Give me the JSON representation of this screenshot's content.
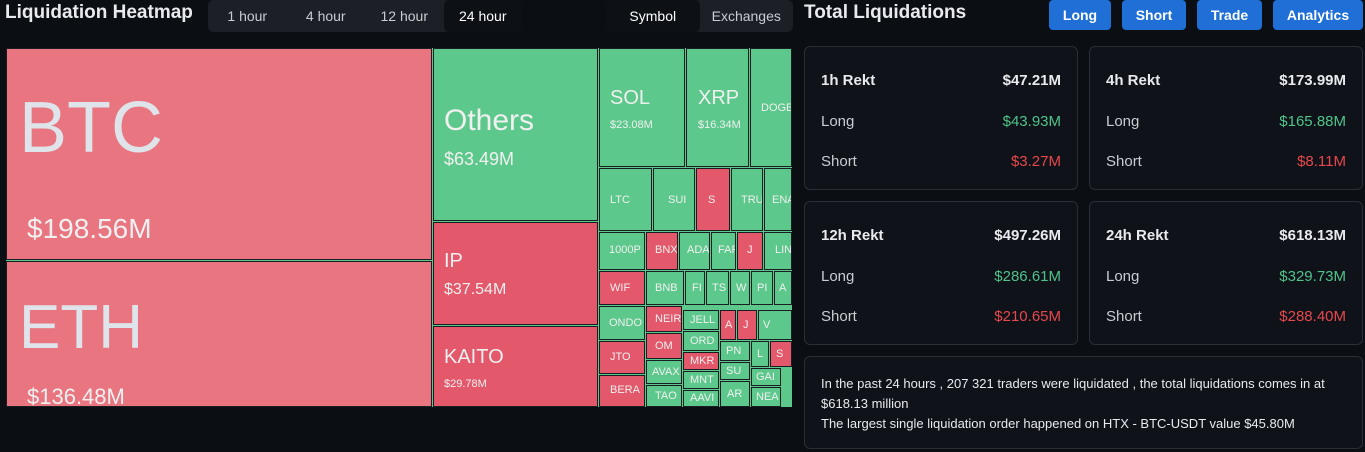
{
  "header": {
    "title": "Liquidation Heatmap",
    "time_tabs": [
      "1 hour",
      "4 hour",
      "12 hour",
      "24 hour"
    ],
    "view_tabs": [
      "Symbol",
      "Exchanges"
    ]
  },
  "heatmap": {
    "tiles": [
      {
        "symbol": "BTC",
        "value": "$198.56M"
      },
      {
        "symbol": "ETH",
        "value": "$136.48M"
      },
      {
        "symbol": "Others",
        "value": "$63.49M"
      },
      {
        "symbol": "IP",
        "value": "$37.54M"
      },
      {
        "symbol": "KAITO",
        "value": "$29.78M"
      },
      {
        "symbol": "SOL",
        "value": "$23.08M"
      },
      {
        "symbol": "XRP",
        "value": "$16.34M"
      },
      {
        "symbol": "DOGE"
      },
      {
        "symbol": "LTC"
      },
      {
        "symbol": "SUI"
      },
      {
        "symbol": "S"
      },
      {
        "symbol": "TRU"
      },
      {
        "symbol": "ENA"
      },
      {
        "symbol": "1000P"
      },
      {
        "symbol": "BNX"
      },
      {
        "symbol": "ADA"
      },
      {
        "symbol": "FAR"
      },
      {
        "symbol": "J"
      },
      {
        "symbol": "LIN"
      },
      {
        "symbol": "WIF"
      },
      {
        "symbol": "BNB"
      },
      {
        "symbol": "FI"
      },
      {
        "symbol": "TS"
      },
      {
        "symbol": "W"
      },
      {
        "symbol": "PI"
      },
      {
        "symbol": "A"
      },
      {
        "symbol": "ONDO"
      },
      {
        "symbol": "NEIR"
      },
      {
        "symbol": "JELL"
      },
      {
        "symbol": "A"
      },
      {
        "symbol": "J"
      },
      {
        "symbol": "V"
      },
      {
        "symbol": "OM"
      },
      {
        "symbol": "ORD"
      },
      {
        "symbol": "JTO"
      },
      {
        "symbol": "MKR"
      },
      {
        "symbol": "PN"
      },
      {
        "symbol": "L"
      },
      {
        "symbol": "S"
      },
      {
        "symbol": "AVAX"
      },
      {
        "symbol": "MNT"
      },
      {
        "symbol": "SU"
      },
      {
        "symbol": "BERA"
      },
      {
        "symbol": "TAO"
      },
      {
        "symbol": "AAVI"
      },
      {
        "symbol": "AR"
      },
      {
        "symbol": "GAI"
      },
      {
        "symbol": "NEA"
      }
    ]
  },
  "totals": {
    "title": "Total Liquidations",
    "buttons": [
      "Long",
      "Short",
      "Trade",
      "Analytics"
    ],
    "cards": [
      {
        "label": "1h Rekt",
        "total": "$47.21M",
        "long_label": "Long",
        "long": "$43.93M",
        "short_label": "Short",
        "short": "$3.27M"
      },
      {
        "label": "4h Rekt",
        "total": "$173.99M",
        "long_label": "Long",
        "long": "$165.88M",
        "short_label": "Short",
        "short": "$8.11M"
      },
      {
        "label": "12h Rekt",
        "total": "$497.26M",
        "long_label": "Long",
        "long": "$286.61M",
        "short_label": "Short",
        "short": "$210.65M"
      },
      {
        "label": "24h Rekt",
        "total": "$618.13M",
        "long_label": "Long",
        "long": "$329.73M",
        "short_label": "Short",
        "short": "$288.40M"
      }
    ]
  },
  "summary": {
    "lines": [
      "In the past 24 hours , 207 321 traders were liquidated , the total liquidations comes in at $618.13 million",
      "The largest single liquidation order happened on HTX - BTC-USDT value $45.80M"
    ]
  }
}
